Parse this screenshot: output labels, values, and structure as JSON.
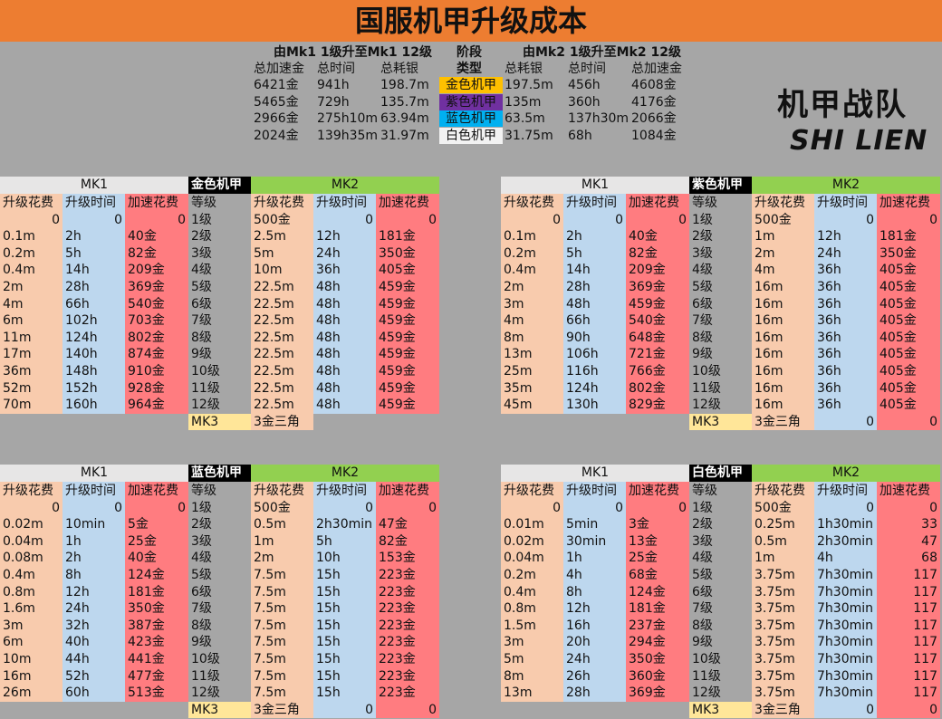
{
  "title": "国服机甲升级成本",
  "summary": {
    "mk1_heading": "由Mk1 1级升至Mk1 12级",
    "stage_heading": "阶段",
    "mk2_heading": "由Mk2 1级升至Mk2 12级",
    "mk1_cols": [
      "总加速金",
      "总时间",
      "总耗银"
    ],
    "type_label": "类型",
    "mk2_cols": [
      "总耗银",
      "总时间",
      "总加速金"
    ],
    "rows": [
      {
        "type": "金色机甲",
        "color": "#ffc000",
        "mk1": [
          "6421金",
          "941h",
          "198.7m"
        ],
        "mk2": [
          "197.5m",
          "456h",
          "4608金"
        ]
      },
      {
        "type": "紫色机甲",
        "color": "#7030a0",
        "mk1": [
          "5465金",
          "729h",
          "135.7m"
        ],
        "mk2": [
          "135m",
          "360h",
          "4176金"
        ]
      },
      {
        "type": "蓝色机甲",
        "color": "#00b0f0",
        "mk1": [
          "2966金",
          "275h10m",
          "63.94m"
        ],
        "mk2": [
          "63.5m",
          "137h30m",
          "2066金"
        ]
      },
      {
        "type": "白色机甲",
        "color": "#f2f2f2",
        "mk1": [
          "2024金",
          "139h35m",
          "31.97m"
        ],
        "mk2": [
          "31.75m",
          "68h",
          "1084金"
        ]
      }
    ]
  },
  "logo": {
    "line1": "机甲战队",
    "line2": "SHI LIEN"
  },
  "colors": {
    "cost": "#f8cbad",
    "time": "#bdd7ee",
    "accel": "#ff7c80",
    "mk1_header": "#e7e6e6",
    "mk2_header": "#92d050",
    "mk3": "#ffe699",
    "level": "#a6a6a6"
  },
  "tables": [
    {
      "name": "金色机甲",
      "mk1_label": "MK1",
      "mk2_label": "MK2",
      "col_headers": [
        "升级花费",
        "升级时间",
        "加速花费",
        "等级",
        "升级花费",
        "升级时间",
        "加速花费"
      ],
      "rows": [
        [
          "0",
          "0",
          "0",
          "1级",
          "500金",
          "0",
          "0"
        ],
        [
          "0.1m",
          "2h",
          "40金",
          "2级",
          "2.5m",
          "12h",
          "181金"
        ],
        [
          "0.2m",
          "5h",
          "82金",
          "3级",
          "5m",
          "24h",
          "350金"
        ],
        [
          "0.4m",
          "14h",
          "209金",
          "4级",
          "10m",
          "36h",
          "405金"
        ],
        [
          "2m",
          "28h",
          "369金",
          "5级",
          "22.5m",
          "48h",
          "459金"
        ],
        [
          "4m",
          "66h",
          "540金",
          "6级",
          "22.5m",
          "48h",
          "459金"
        ],
        [
          "6m",
          "102h",
          "703金",
          "7级",
          "22.5m",
          "48h",
          "459金"
        ],
        [
          "11m",
          "124h",
          "802金",
          "8级",
          "22.5m",
          "48h",
          "459金"
        ],
        [
          "17m",
          "140h",
          "874金",
          "9级",
          "22.5m",
          "48h",
          "459金"
        ],
        [
          "36m",
          "148h",
          "910金",
          "10级",
          "22.5m",
          "48h",
          "459金"
        ],
        [
          "52m",
          "152h",
          "928金",
          "11级",
          "22.5m",
          "48h",
          "459金"
        ],
        [
          "70m",
          "160h",
          "964金",
          "12级",
          "22.5m",
          "48h",
          "459金"
        ]
      ],
      "mk3": [
        "MK3",
        "3金三角",
        null,
        null
      ]
    },
    {
      "name": "紫色机甲",
      "mk1_label": "MK1",
      "mk2_label": "MK2",
      "col_headers": [
        "升级花费",
        "升级时间",
        "加速花费",
        "等级",
        "升级花费",
        "升级时间",
        "加速花费"
      ],
      "rows": [
        [
          "0",
          "0",
          "0",
          "1级",
          "500金",
          "0",
          "0"
        ],
        [
          "0.1m",
          "2h",
          "40金",
          "2级",
          "1m",
          "12h",
          "181金"
        ],
        [
          "0.2m",
          "5h",
          "82金",
          "3级",
          "2m",
          "24h",
          "350金"
        ],
        [
          "0.4m",
          "14h",
          "209金",
          "4级",
          "4m",
          "36h",
          "405金"
        ],
        [
          "2m",
          "28h",
          "369金",
          "5级",
          "16m",
          "36h",
          "405金"
        ],
        [
          "3m",
          "48h",
          "459金",
          "6级",
          "16m",
          "36h",
          "405金"
        ],
        [
          "4m",
          "66h",
          "540金",
          "7级",
          "16m",
          "36h",
          "405金"
        ],
        [
          "8m",
          "90h",
          "648金",
          "8级",
          "16m",
          "36h",
          "405金"
        ],
        [
          "13m",
          "106h",
          "721金",
          "9级",
          "16m",
          "36h",
          "405金"
        ],
        [
          "25m",
          "116h",
          "766金",
          "10级",
          "16m",
          "36h",
          "405金"
        ],
        [
          "35m",
          "124h",
          "802金",
          "11级",
          "16m",
          "36h",
          "405金"
        ],
        [
          "45m",
          "130h",
          "829金",
          "12级",
          "16m",
          "36h",
          "405金"
        ]
      ],
      "mk3": [
        "MK3",
        "3金三角",
        "0",
        "0"
      ]
    },
    {
      "name": "蓝色机甲",
      "mk1_label": "MK1",
      "mk2_label": "MK2",
      "col_headers": [
        "升级花费",
        "升级时间",
        "加速花费",
        "等级",
        "升级花费",
        "升级时间",
        "加速花费"
      ],
      "rows": [
        [
          "0",
          "0",
          "0",
          "1级",
          "500金",
          "0",
          "0"
        ],
        [
          "0.02m",
          "10min",
          "5金",
          "2级",
          "0.5m",
          "2h30min",
          "47金"
        ],
        [
          "0.04m",
          "1h",
          "25金",
          "3级",
          "1m",
          "5h",
          "82金"
        ],
        [
          "0.08m",
          "2h",
          "40金",
          "4级",
          "2m",
          "10h",
          "153金"
        ],
        [
          "0.4m",
          "8h",
          "124金",
          "5级",
          "7.5m",
          "15h",
          "223金"
        ],
        [
          "0.8m",
          "12h",
          "181金",
          "6级",
          "7.5m",
          "15h",
          "223金"
        ],
        [
          "1.6m",
          "24h",
          "350金",
          "7级",
          "7.5m",
          "15h",
          "223金"
        ],
        [
          "3m",
          "32h",
          "387金",
          "8级",
          "7.5m",
          "15h",
          "223金"
        ],
        [
          "6m",
          "40h",
          "423金",
          "9级",
          "7.5m",
          "15h",
          "223金"
        ],
        [
          "10m",
          "44h",
          "441金",
          "10级",
          "7.5m",
          "15h",
          "223金"
        ],
        [
          "16m",
          "52h",
          "477金",
          "11级",
          "7.5m",
          "15h",
          "223金"
        ],
        [
          "26m",
          "60h",
          "513金",
          "12级",
          "7.5m",
          "15h",
          "223金"
        ]
      ],
      "mk3": [
        "MK3",
        "3金三角",
        "0",
        "0"
      ]
    },
    {
      "name": "白色机甲",
      "mk1_label": "MK1",
      "mk2_label": "MK2",
      "col_headers": [
        "升级花费",
        "升级时间",
        "加速花费",
        "等级",
        "升级花费",
        "升级时间",
        "加速花费"
      ],
      "rows": [
        [
          "0",
          "0",
          "0",
          "1级",
          "500金",
          "0",
          "0"
        ],
        [
          "0.01m",
          "5min",
          "3金",
          "2级",
          "0.25m",
          "1h30min",
          "33"
        ],
        [
          "0.02m",
          "30min",
          "13金",
          "3级",
          "0.5m",
          "2h30min",
          "47"
        ],
        [
          "0.04m",
          "1h",
          "25金",
          "4级",
          "1m",
          "4h",
          "68"
        ],
        [
          "0.2m",
          "4h",
          "68金",
          "5级",
          "3.75m",
          "7h30min",
          "117"
        ],
        [
          "0.4m",
          "8h",
          "124金",
          "6级",
          "3.75m",
          "7h30min",
          "117"
        ],
        [
          "0.8m",
          "12h",
          "181金",
          "7级",
          "3.75m",
          "7h30min",
          "117"
        ],
        [
          "1.5m",
          "16h",
          "237金",
          "8级",
          "3.75m",
          "7h30min",
          "117"
        ],
        [
          "3m",
          "20h",
          "294金",
          "9级",
          "3.75m",
          "7h30min",
          "117"
        ],
        [
          "5m",
          "24h",
          "350金",
          "10级",
          "3.75m",
          "7h30min",
          "117"
        ],
        [
          "8m",
          "26h",
          "360金",
          "11级",
          "3.75m",
          "7h30min",
          "117"
        ],
        [
          "13m",
          "28h",
          "369金",
          "12级",
          "3.75m",
          "7h30min",
          "117"
        ]
      ],
      "mk3": [
        "MK3",
        "3金三角",
        "0",
        "0"
      ]
    }
  ]
}
